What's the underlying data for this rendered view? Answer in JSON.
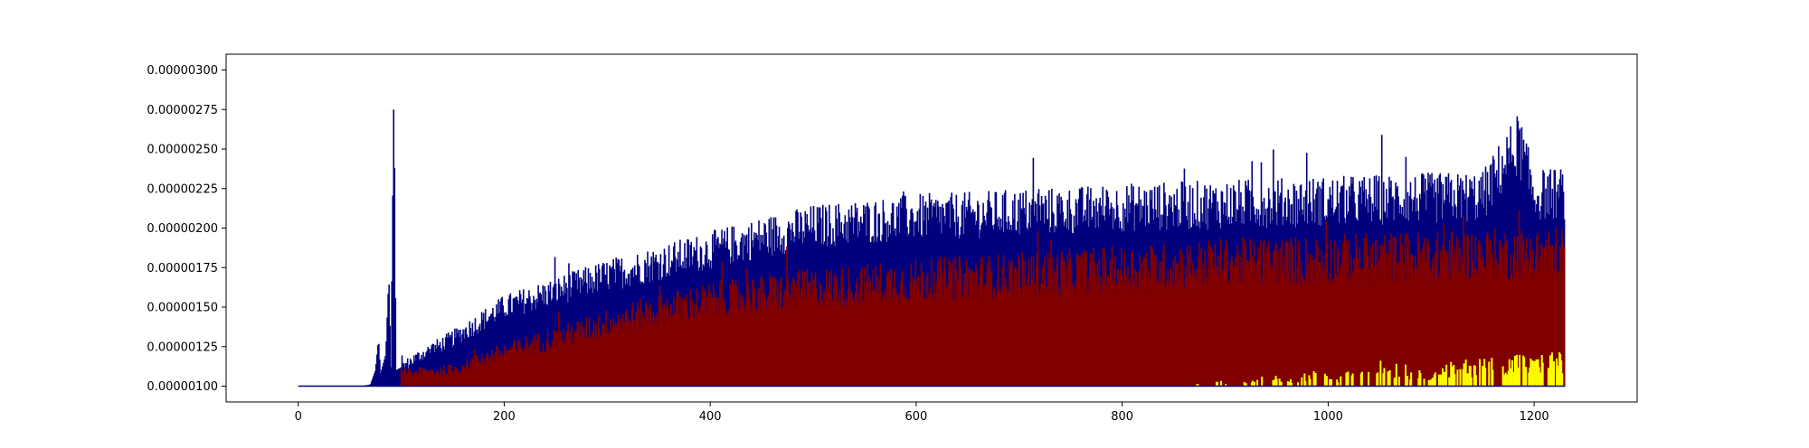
{
  "chart_data": {
    "type": "line",
    "title": "",
    "xlabel": "",
    "ylabel": "",
    "xlim": [
      -70,
      1300
    ],
    "ylim": [
      9e-07,
      3.1e-06
    ],
    "x_ticks": [
      0,
      200,
      400,
      600,
      800,
      1000,
      1200
    ],
    "x_tick_labels": [
      "0",
      "200",
      "400",
      "600",
      "800",
      "1000",
      "1200"
    ],
    "y_ticks": [
      1e-06,
      1.25e-06,
      1.5e-06,
      1.75e-06,
      2e-06,
      2.25e-06,
      2.5e-06,
      2.75e-06,
      3e-06
    ],
    "y_tick_labels": [
      "0.00000100",
      "0.00000125",
      "0.00000150",
      "0.00000175",
      "0.00000200",
      "0.00000225",
      "0.00000250",
      "0.00000275",
      "0.00000300"
    ],
    "grid": false,
    "baseline": 1e-06,
    "series": [
      {
        "color": "#00007f",
        "x": [
          0,
          60,
          70,
          75,
          78,
          80,
          85,
          88,
          90,
          93,
          95,
          100,
          120,
          150,
          200,
          250,
          300,
          350,
          400,
          450,
          500,
          550,
          600,
          650,
          700,
          750,
          800,
          850,
          900,
          950,
          1000,
          1050,
          1100,
          1150,
          1185,
          1200,
          1230
        ],
        "y": [
          1e-06,
          1e-06,
          1.01e-06,
          1.1e-06,
          1.3e-06,
          1.08e-06,
          1.2e-06,
          1.7e-06,
          1.12e-06,
          2.93e-06,
          1.1e-06,
          1.12e-06,
          1.2e-06,
          1.3e-06,
          1.5e-06,
          1.6e-06,
          1.7e-06,
          1.78e-06,
          1.86e-06,
          1.94e-06,
          2.01e-06,
          2.04e-06,
          2.07e-06,
          2.08e-06,
          2.1e-06,
          2.11e-06,
          2.13e-06,
          2.14e-06,
          2.15e-06,
          2.16e-06,
          2.17e-06,
          2.18e-06,
          2.19e-06,
          2.2e-06,
          2.54e-06,
          2.21e-06,
          2.22e-06
        ]
      },
      {
        "color": "#800000",
        "x": [
          100,
          150,
          200,
          250,
          300,
          350,
          400,
          450,
          500,
          550,
          600,
          650,
          700,
          750,
          800,
          850,
          900,
          950,
          1000,
          1050,
          1100,
          1150,
          1200,
          1230
        ],
        "y": [
          1.08e-06,
          1.1e-06,
          1.22e-06,
          1.3e-06,
          1.4e-06,
          1.48e-06,
          1.54e-06,
          1.58e-06,
          1.62e-06,
          1.64e-06,
          1.67e-06,
          1.69e-06,
          1.7e-06,
          1.72e-06,
          1.74e-06,
          1.76e-06,
          1.78e-06,
          1.79e-06,
          1.8e-06,
          1.81e-06,
          1.82e-06,
          1.83e-06,
          1.84e-06,
          1.85e-06
        ]
      },
      {
        "color": "#ffff00",
        "x": [
          870,
          950,
          960,
          990,
          1010,
          1040,
          1060,
          1080,
          1100,
          1120,
          1140,
          1160,
          1180,
          1200,
          1215,
          1230
        ],
        "y": [
          1.01e-06,
          1.06e-06,
          1.04e-06,
          1.08e-06,
          1.05e-06,
          1.12e-06,
          1.13e-06,
          1.1e-06,
          1.09e-06,
          1.12e-06,
          1.14e-06,
          1.15e-06,
          1.17e-06,
          1.14e-06,
          1.18e-06,
          1.16e-06
        ]
      }
    ]
  }
}
